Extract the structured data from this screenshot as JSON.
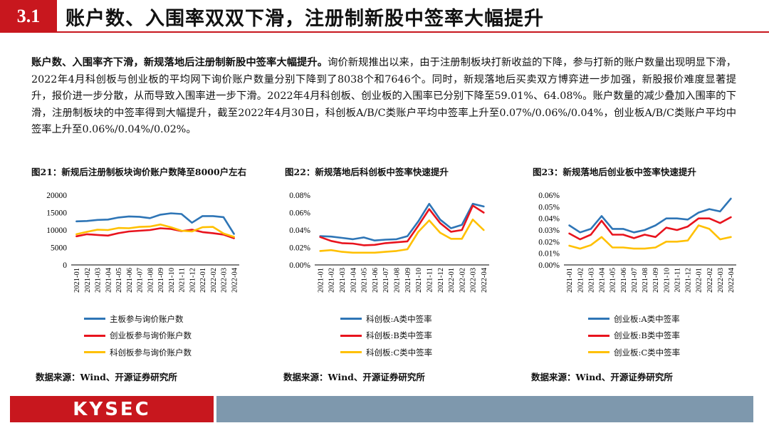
{
  "header": {
    "number": "3.1",
    "title": "账户数、入围率双双下滑，注册制新股中签率大幅提升"
  },
  "body": {
    "lead": "账户数、入围率齐下滑，新规落地后注册制新股中签率大幅提升。",
    "text": "询价新规推出以来，由于注册制板块打新收益的下降，参与打新的账户数量出现明显下滑，2022年4月科创板与创业板的平均网下询价账户数量分别下降到了8038个和7646个。同时，新规落地后买卖双方博弈进一步加强，新股报价难度显著提升，报价进一步分散，从而导致入围率进一步下滑。2022年4月科创板、创业板的入围率已分别下降至59.01%、64.08%。账户数量的减少叠加入围率的下滑，注册制板块的中签率得到大幅提升，截至2022年4月30日，科创板A/B/C类账户平均中签率上升至0.07%/0.06%/0.04%，创业板A/B/C类账户平均中签率上升至0.06%/0.04%/0.02%。"
  },
  "figures": [
    {
      "title": "图21：新规后注册制板块询价账户数降至8000户左右",
      "source": "数据来源：Wind、开源证券研究所"
    },
    {
      "title": "图22：新规落地后科创板中签率快速提升",
      "source": "数据来源：Wind、开源证券研究所"
    },
    {
      "title": "图23：新规落地后创业板中签率快速提升",
      "source": "数据来源：Wind、开源证券研究所"
    }
  ],
  "chart_data": [
    {
      "type": "line",
      "x": [
        "2021-01",
        "2021-02",
        "2021-03",
        "2021-04",
        "2021-05",
        "2021-06",
        "2021-07",
        "2021-08",
        "2021-09",
        "2021-10",
        "2021-11",
        "2021-12",
        "2022-01",
        "2022-02",
        "2022-03",
        "2022-04"
      ],
      "ylim": [
        0,
        20000
      ],
      "yticks": [
        0,
        5000,
        10000,
        15000,
        20000
      ],
      "ytick_labels": [
        "0",
        "5000",
        "10000",
        "15000",
        "20000"
      ],
      "grid": false,
      "legend": "bottom",
      "series": [
        {
          "name": "主板参与询价账户数",
          "color": "#2e75b6",
          "values": [
            12500,
            12600,
            12900,
            13000,
            13600,
            13900,
            13800,
            13400,
            14400,
            14800,
            14600,
            12100,
            14000,
            14000,
            13700,
            8900
          ]
        },
        {
          "name": "创业板参与询价账户数",
          "color": "#e8131d",
          "values": [
            8200,
            8800,
            8600,
            8400,
            9100,
            9600,
            9800,
            10000,
            10500,
            10300,
            9700,
            10100,
            9400,
            9100,
            8700,
            7646
          ]
        },
        {
          "name": "科创板参与询价账户数",
          "color": "#ffc000",
          "values": [
            8800,
            9500,
            10100,
            10000,
            10600,
            10500,
            10900,
            11000,
            11600,
            10800,
            9800,
            9600,
            10800,
            10900,
            9000,
            8038
          ]
        }
      ]
    },
    {
      "type": "line",
      "x": [
        "2021-01",
        "2021-02",
        "2021-03",
        "2021-04",
        "2021-05",
        "2021-06",
        "2021-07",
        "2021-08",
        "2021-09",
        "2021-10",
        "2021-11",
        "2021-12",
        "2022-01",
        "2022-02",
        "2022-03",
        "2022-04"
      ],
      "ylim": [
        0,
        0.08
      ],
      "yticks": [
        0,
        0.02,
        0.04,
        0.06,
        0.08
      ],
      "ytick_labels": [
        "0.00%",
        "0.02%",
        "0.04%",
        "0.06%",
        "0.08%"
      ],
      "grid": false,
      "legend": "bottom",
      "series": [
        {
          "name": "科创板:A类中签率",
          "color": "#2e75b6",
          "values": [
            0.033,
            0.0325,
            0.031,
            0.0295,
            0.0315,
            0.028,
            0.029,
            0.0295,
            0.033,
            0.05,
            0.07,
            0.052,
            0.042,
            0.046,
            0.07,
            0.067
          ]
        },
        {
          "name": "科创板:B类中签率",
          "color": "#e8131d",
          "values": [
            0.032,
            0.0275,
            0.025,
            0.0245,
            0.0225,
            0.023,
            0.025,
            0.026,
            0.027,
            0.045,
            0.064,
            0.048,
            0.038,
            0.04,
            0.068,
            0.06
          ]
        },
        {
          "name": "科创板:C类中签率",
          "color": "#ffc000",
          "values": [
            0.016,
            0.017,
            0.015,
            0.014,
            0.014,
            0.014,
            0.015,
            0.016,
            0.018,
            0.038,
            0.051,
            0.037,
            0.03,
            0.03,
            0.052,
            0.04
          ]
        }
      ]
    },
    {
      "type": "line",
      "x": [
        "2021-01",
        "2021-02",
        "2021-03",
        "2021-04",
        "2021-05",
        "2021-06",
        "2021-07",
        "2021-08",
        "2021-09",
        "2021-10",
        "2021-11",
        "2021-12",
        "2022-01",
        "2022-02",
        "2022-03",
        "2022-04"
      ],
      "ylim": [
        0,
        0.06
      ],
      "yticks": [
        0,
        0.01,
        0.02,
        0.03,
        0.04,
        0.05,
        0.06
      ],
      "ytick_labels": [
        "0.00%",
        "0.01%",
        "0.02%",
        "0.03%",
        "0.04%",
        "0.05%",
        "0.06%"
      ],
      "grid": false,
      "legend": "bottom",
      "series": [
        {
          "name": "创业板:A类中签率",
          "color": "#2e75b6",
          "values": [
            0.034,
            0.028,
            0.031,
            0.042,
            0.031,
            0.031,
            0.028,
            0.03,
            0.034,
            0.04,
            0.04,
            0.039,
            0.045,
            0.048,
            0.046,
            0.057
          ]
        },
        {
          "name": "创业板:B类中签率",
          "color": "#e8131d",
          "values": [
            0.027,
            0.022,
            0.026,
            0.038,
            0.026,
            0.026,
            0.023,
            0.026,
            0.024,
            0.032,
            0.03,
            0.033,
            0.04,
            0.04,
            0.036,
            0.041
          ]
        },
        {
          "name": "创业板:C类中签率",
          "color": "#ffc000",
          "values": [
            0.0165,
            0.014,
            0.017,
            0.024,
            0.015,
            0.015,
            0.014,
            0.014,
            0.015,
            0.02,
            0.02,
            0.021,
            0.034,
            0.031,
            0.022,
            0.024
          ]
        }
      ]
    }
  ],
  "footer": {
    "logo_text": "KYSEC"
  }
}
